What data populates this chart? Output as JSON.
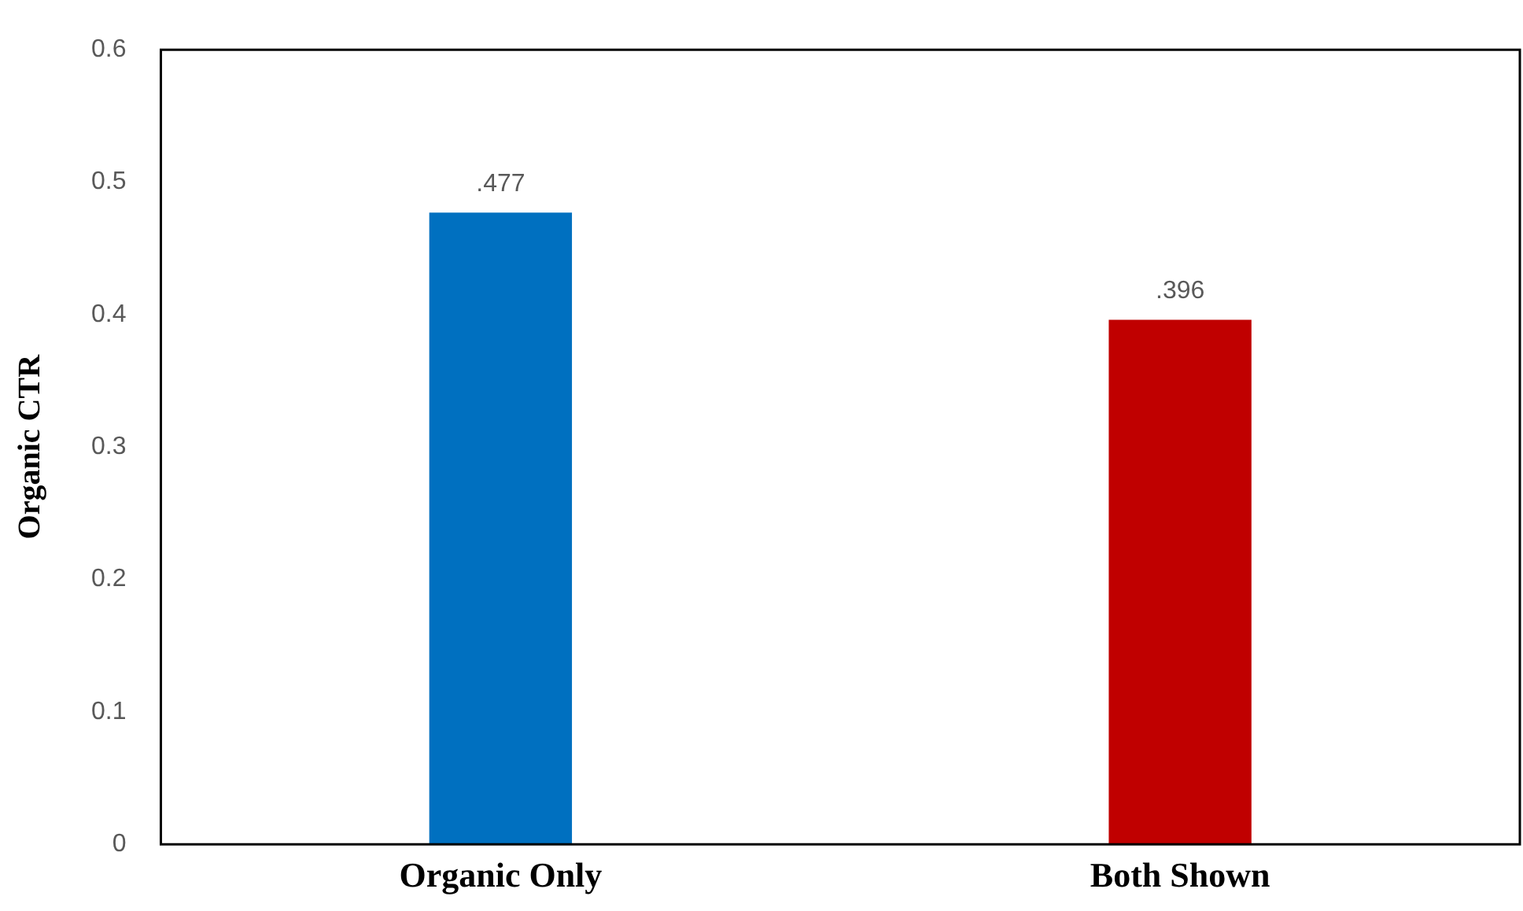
{
  "chart_data": {
    "type": "bar",
    "ylabel": "Organic CTR",
    "categories": [
      "Organic Only",
      "Both Shown"
    ],
    "values": [
      0.477,
      0.396
    ],
    "colors": [
      "#0070c0",
      "#c00000"
    ],
    "value_labels": [
      ".477",
      ".396"
    ],
    "ylim": [
      0,
      0.6
    ],
    "yticks": [
      0,
      0.1,
      0.2,
      0.3,
      0.4,
      0.5,
      0.6
    ],
    "grid": false,
    "legend": false
  }
}
